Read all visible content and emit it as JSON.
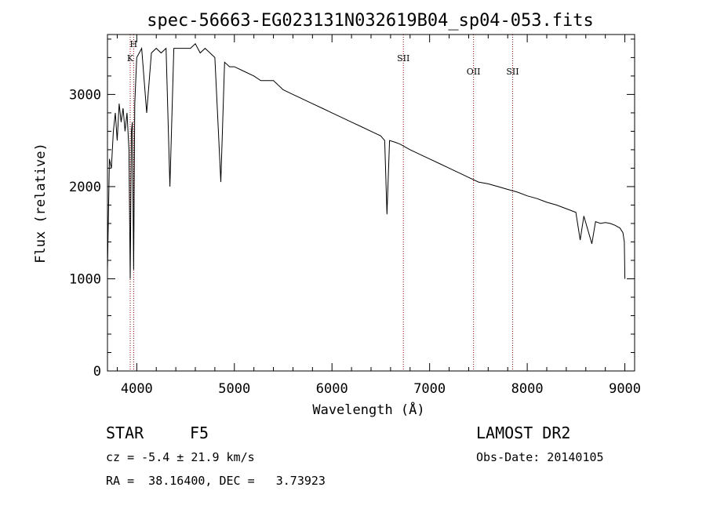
{
  "chart_data": {
    "type": "line",
    "title": "spec-56663-EG023131N032619B04_sp04-053.fits",
    "xlabel": "Wavelength (Å)",
    "ylabel": "Flux (relative)",
    "xlim": [
      3700,
      9100
    ],
    "ylim": [
      0,
      3650
    ],
    "xticks": [
      4000,
      5000,
      6000,
      7000,
      8000,
      9000
    ],
    "yticks": [
      0,
      1000,
      2000,
      3000
    ],
    "grid": false,
    "series": [
      {
        "x": [
          3700,
          3720,
          3740,
          3760,
          3780,
          3800,
          3820,
          3840,
          3860,
          3880,
          3900,
          3920,
          3933,
          3945,
          3955,
          3968,
          3980,
          4000,
          4050,
          4102,
          4150,
          4200,
          4250,
          4300,
          4340,
          4380,
          4450,
          4500,
          4550,
          4600,
          4650,
          4700,
          4750,
          4800,
          4861,
          4900,
          4950,
          5000,
          5100,
          5200,
          5270,
          5400,
          5500,
          5600,
          5700,
          5800,
          5900,
          6000,
          6100,
          6200,
          6300,
          6400,
          6500,
          6540,
          6563,
          6590,
          6650,
          6700,
          6800,
          6900,
          7000,
          7100,
          7200,
          7300,
          7400,
          7500,
          7600,
          7700,
          7800,
          7900,
          8000,
          8100,
          8200,
          8300,
          8400,
          8498,
          8542,
          8580,
          8662,
          8700,
          8750,
          8800,
          8850,
          8900,
          8950,
          8980,
          8995,
          9000
        ],
        "y": [
          1100,
          2300,
          2200,
          2600,
          2800,
          2500,
          2900,
          2700,
          2850,
          2600,
          2800,
          2400,
          1000,
          2600,
          2700,
          1100,
          2900,
          3400,
          3500,
          2800,
          3450,
          3500,
          3450,
          3500,
          2000,
          3500,
          3500,
          3500,
          3500,
          3550,
          3450,
          3500,
          3450,
          3400,
          2050,
          3350,
          3300,
          3300,
          3250,
          3200,
          3150,
          3150,
          3050,
          3000,
          2950,
          2900,
          2850,
          2800,
          2750,
          2700,
          2650,
          2600,
          2550,
          2500,
          1700,
          2500,
          2480,
          2460,
          2400,
          2350,
          2300,
          2250,
          2200,
          2150,
          2100,
          2050,
          2030,
          2000,
          1970,
          1940,
          1900,
          1870,
          1830,
          1800,
          1760,
          1720,
          1420,
          1680,
          1380,
          1620,
          1600,
          1610,
          1600,
          1580,
          1550,
          1500,
          1400,
          1000
        ]
      }
    ],
    "line_markers": [
      {
        "label": "K",
        "x": 3933
      },
      {
        "label": "H",
        "x": 3968
      },
      {
        "label": "SII",
        "x": 6731
      },
      {
        "label": "OII",
        "x": 7450
      },
      {
        "label": "SII",
        "x": 7850
      }
    ],
    "marker_color": "#8b0000"
  },
  "info": {
    "class_label": "STAR",
    "subclass": "F5",
    "survey": "LAMOST DR2",
    "redshift_line": "cz = -5.4 ± 21.9 km/s",
    "obs_date_line": "Obs-Date: 20140105",
    "coords_line": "RA =  38.16400, DEC =   3.73923"
  }
}
